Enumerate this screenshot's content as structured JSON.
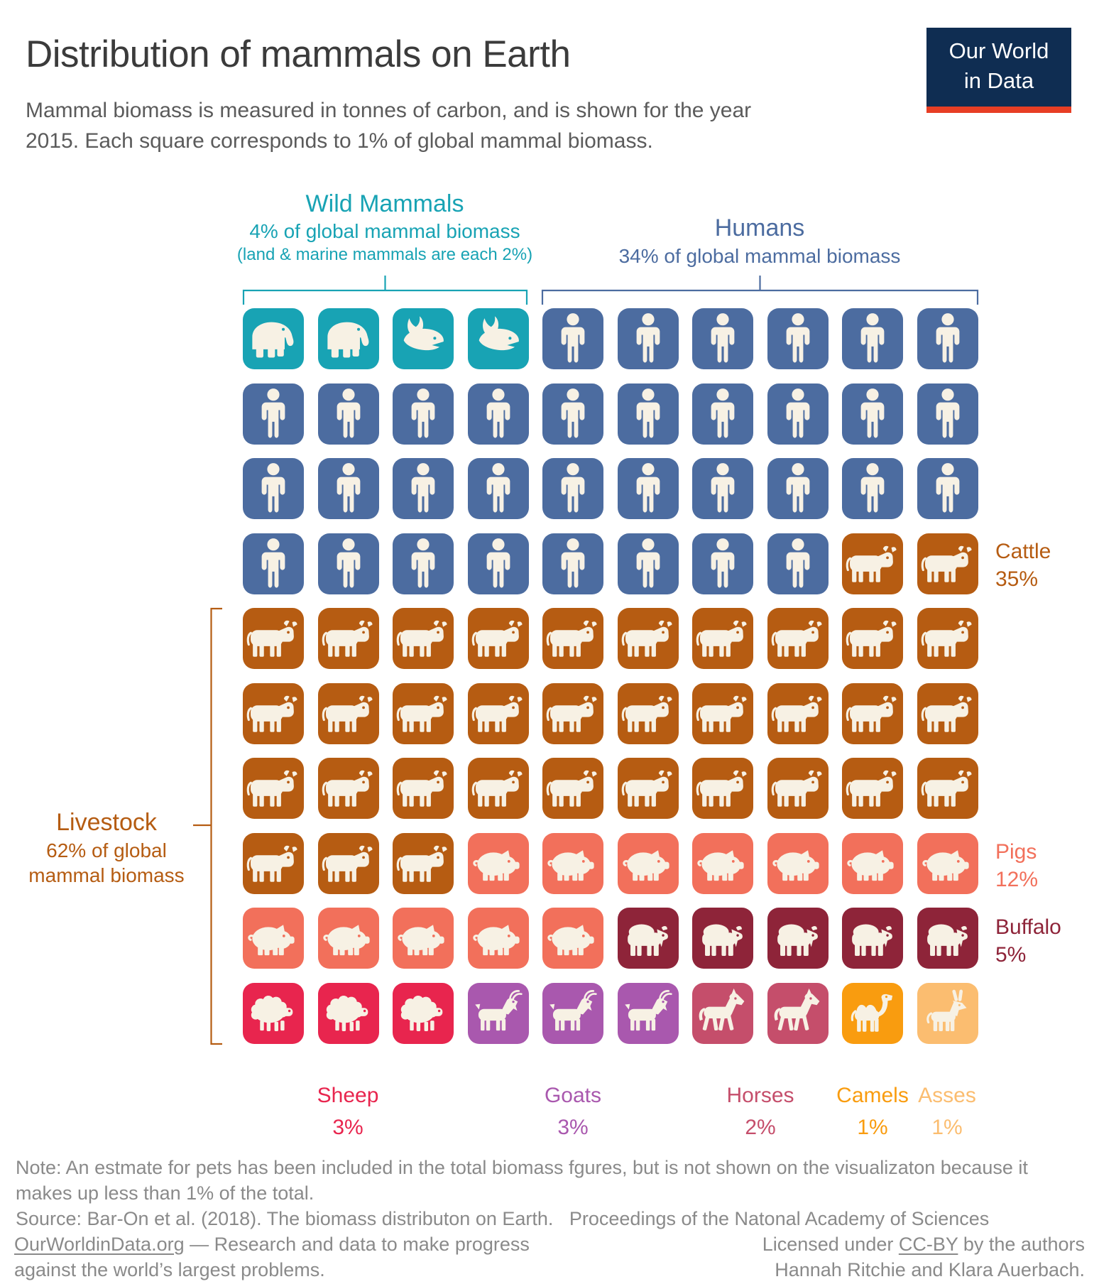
{
  "title": "Distribution of mammals on Earth",
  "subtitle_lines": [
    "Mammal biomass is measured in tonnes of carbon, and is shown for the year",
    "2015. Each square corresponds to 1% of global mammal biomass."
  ],
  "logo": {
    "line1": "Our World",
    "line2": "in Data"
  },
  "colors": {
    "wild": "#18A3B4",
    "human": "#4C6CA0",
    "cattle": "#B65C12",
    "pig": "#F2705B",
    "buffalo": "#8E2439",
    "sheep": "#E8254E",
    "goat": "#A958AE",
    "horse": "#C54E6B",
    "camel": "#F99C0F",
    "ass": "#FBBD70",
    "livestock": "#B55C12",
    "icon": "#F7F1E4",
    "title_text": "#3B3B3B",
    "subtitle_text": "#5B5B5B",
    "footer_text": "#8A8A8A",
    "logo_bg": "#0F2D52",
    "logo_accent": "#E73E24"
  },
  "annotations": {
    "wild": {
      "label": "Wild Mammals",
      "subline": "4% of global mammal biomass",
      "note": "(land & marine mammals are each 2%)"
    },
    "humans": {
      "label": "Humans",
      "subline": "34% of global mammal biomass"
    },
    "livestock": {
      "label": "Livestock",
      "subline1": "62% of global",
      "subline2": "mammal biomass"
    }
  },
  "side_labels": [
    {
      "name": "Cattle",
      "value": "35%"
    },
    {
      "name": "Pigs",
      "value": "12%"
    },
    {
      "name": "Buffalo",
      "value": "5%"
    }
  ],
  "bottom_labels": [
    {
      "name": "Sheep",
      "value": "3%"
    },
    {
      "name": "Goats",
      "value": "3%"
    },
    {
      "name": "Horses",
      "value": "2%"
    },
    {
      "name": "Camels",
      "value": "1%"
    },
    {
      "name": "Asses",
      "value": "1%"
    }
  ],
  "chart_data": {
    "type": "waffle",
    "title": "Distribution of mammals on Earth",
    "unit": "1 square = 1% of global mammal biomass (tonnes of carbon, year 2015)",
    "grid": {
      "rows": 10,
      "cols": 10,
      "fill_order": "left-to-right, top-to-bottom"
    },
    "groups": [
      {
        "name": "Wild Mammals",
        "share_pct": 4,
        "note": "land & marine mammals are each 2%"
      },
      {
        "name": "Humans",
        "share_pct": 34
      },
      {
        "name": "Livestock",
        "share_pct": 62
      }
    ],
    "categories": [
      {
        "name": "Wild land mammals",
        "icon": "elephant",
        "squares": 2,
        "color": "#18A3B4",
        "group": "Wild Mammals"
      },
      {
        "name": "Wild marine mammals",
        "icon": "whale",
        "squares": 2,
        "color": "#18A3B4",
        "group": "Wild Mammals"
      },
      {
        "name": "Humans",
        "icon": "person",
        "squares": 34,
        "color": "#4C6CA0",
        "group": "Humans"
      },
      {
        "name": "Cattle",
        "icon": "cow",
        "squares": 35,
        "color": "#B65C12",
        "group": "Livestock"
      },
      {
        "name": "Pigs",
        "icon": "pig",
        "squares": 12,
        "color": "#F2705B",
        "group": "Livestock"
      },
      {
        "name": "Buffalo",
        "icon": "buffalo",
        "squares": 5,
        "color": "#8E2439",
        "group": "Livestock"
      },
      {
        "name": "Sheep",
        "icon": "sheep",
        "squares": 3,
        "color": "#E8254E",
        "group": "Livestock"
      },
      {
        "name": "Goats",
        "icon": "goat",
        "squares": 3,
        "color": "#A958AE",
        "group": "Livestock"
      },
      {
        "name": "Horses",
        "icon": "horse",
        "squares": 2,
        "color": "#C54E6B",
        "group": "Livestock"
      },
      {
        "name": "Camels",
        "icon": "camel",
        "squares": 1,
        "color": "#F99C0F",
        "group": "Livestock"
      },
      {
        "name": "Asses",
        "icon": "donkey",
        "squares": 1,
        "color": "#FBBD70",
        "group": "Livestock"
      }
    ]
  },
  "footer": {
    "note_lines": [
      "Note: An estmate for pets has been included in the total biomass fgures, but is not shown on the visualizaton because it",
      "makes up less than 1% of the total."
    ],
    "source": "Source: Bar-On et al. (2018). The biomass distributon on Earth.   Proceedings of the Natonal Academy of Sciences",
    "brand_link": "OurWorldinData.org",
    "brand_rest": " — Research and data to make progress",
    "brand_line2": "against the world’s largest problems.",
    "license_pre": "Licensed under ",
    "license_link": "CC-BY",
    "license_post": " by the authors",
    "license_line2": "Hannah Ritchie and Klara Auerbach."
  }
}
